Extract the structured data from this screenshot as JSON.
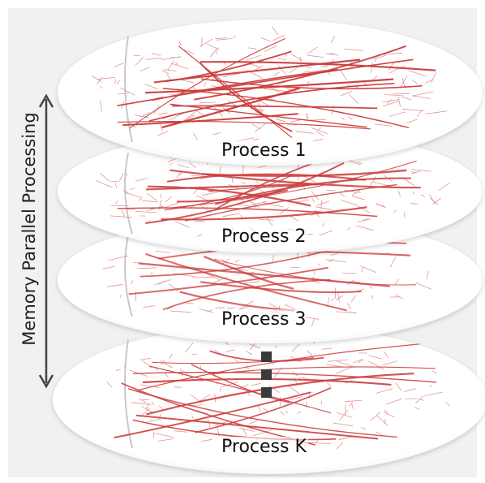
{
  "axis_label": "Memory Parallel Processing",
  "layers": [
    {
      "label": "Process 1"
    },
    {
      "label": "Process 2"
    },
    {
      "label": "Process 3"
    },
    {
      "label": "Process K"
    }
  ],
  "ellipsis": {
    "count": 3
  },
  "colors": {
    "panel": "#f1f1f1",
    "disk": "#ffffff",
    "road_dark": "#cc3b3b",
    "road_light": "#e29595",
    "river": "#c8c8c8",
    "arrow": "#444444",
    "ellipsis_mark": "#3a3a3a"
  }
}
